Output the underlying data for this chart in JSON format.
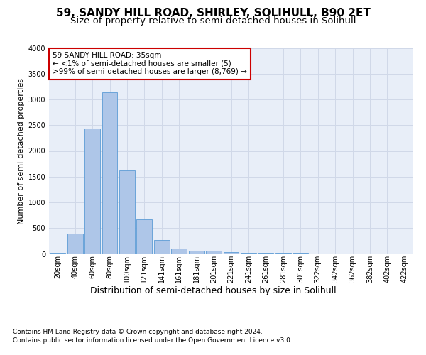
{
  "title1": "59, SANDY HILL ROAD, SHIRLEY, SOLIHULL, B90 2ET",
  "title2": "Size of property relative to semi-detached houses in Solihull",
  "xlabel": "Distribution of semi-detached houses by size in Solihull",
  "ylabel": "Number of semi-detached properties",
  "footnote1": "Contains HM Land Registry data © Crown copyright and database right 2024.",
  "footnote2": "Contains public sector information licensed under the Open Government Licence v3.0.",
  "annotation_line1": "59 SANDY HILL ROAD: 35sqm",
  "annotation_line2": "← <1% of semi-detached houses are smaller (5)",
  "annotation_line3": ">99% of semi-detached houses are larger (8,769) →",
  "categories": [
    "20sqm",
    "40sqm",
    "60sqm",
    "80sqm",
    "100sqm",
    "121sqm",
    "141sqm",
    "161sqm",
    "181sqm",
    "201sqm",
    "221sqm",
    "241sqm",
    "261sqm",
    "281sqm",
    "301sqm",
    "322sqm",
    "342sqm",
    "362sqm",
    "382sqm",
    "402sqm",
    "422sqm"
  ],
  "values": [
    5,
    390,
    2430,
    3140,
    1620,
    670,
    275,
    110,
    65,
    60,
    35,
    5,
    2,
    1,
    1,
    0,
    0,
    0,
    0,
    0,
    0
  ],
  "bar_color": "#aec6e8",
  "bar_edge_color": "#5b9bd5",
  "annotation_box_color": "#ffffff",
  "annotation_box_edge": "#cc0000",
  "ylim": [
    0,
    4000
  ],
  "yticks": [
    0,
    500,
    1000,
    1500,
    2000,
    2500,
    3000,
    3500,
    4000
  ],
  "grid_color": "#d0d8e8",
  "bg_color": "#e8eef8",
  "fig_bg_color": "#ffffff",
  "title1_fontsize": 11,
  "title2_fontsize": 9.5,
  "xlabel_fontsize": 9,
  "ylabel_fontsize": 8,
  "tick_fontsize": 7,
  "annot_fontsize": 7.5,
  "footnote_fontsize": 6.5
}
